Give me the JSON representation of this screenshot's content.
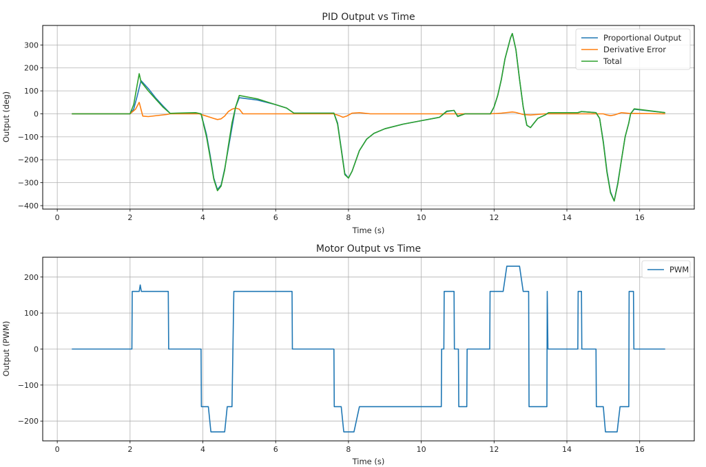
{
  "chart_data": [
    {
      "type": "line",
      "title": "PID Output vs Time",
      "xlabel": "Time (s)",
      "ylabel": "Output (deg)",
      "xlim": [
        -0.4,
        17.5
      ],
      "ylim": [
        -415,
        385
      ],
      "xticks": [
        0,
        2,
        4,
        6,
        8,
        10,
        12,
        14,
        16
      ],
      "yticks": [
        -400,
        -300,
        -200,
        -100,
        0,
        100,
        200,
        300
      ],
      "xtick_labels": [
        "0",
        "2",
        "4",
        "6",
        "8",
        "10",
        "12",
        "14",
        "16"
      ],
      "ytick_labels": [
        "−400",
        "−300",
        "−200",
        "−100",
        "0",
        "100",
        "200",
        "300"
      ],
      "grid": true,
      "legend_position": "upper right",
      "series": [
        {
          "name": "Proportional Output",
          "color": "#1f77b4",
          "x": [
            0.4,
            2.0,
            2.1,
            2.2,
            2.3,
            2.5,
            2.7,
            2.9,
            3.1,
            3.8,
            3.95,
            4.1,
            4.2,
            4.3,
            4.4,
            4.5,
            4.6,
            4.7,
            4.8,
            4.9,
            5.0,
            5.5,
            6.0,
            6.3,
            6.5,
            7.6,
            7.7,
            7.8,
            7.9,
            8.0,
            8.1,
            8.3,
            8.5,
            8.7,
            9.0,
            9.5,
            10.0,
            10.5,
            10.7,
            10.9,
            11.0,
            11.2,
            11.5,
            11.9,
            12.0,
            12.1,
            12.2,
            12.3,
            12.45,
            12.5,
            12.6,
            12.7,
            12.8,
            12.9,
            13.0,
            13.1,
            13.2,
            13.4,
            13.5,
            14.3,
            14.4,
            14.8,
            14.9,
            15.0,
            15.1,
            15.2,
            15.3,
            15.4,
            15.5,
            15.6,
            15.7,
            15.75,
            15.85,
            16.7
          ],
          "values": [
            0,
            0,
            20,
            80,
            145,
            110,
            70,
            35,
            2,
            2,
            0,
            -90,
            -180,
            -280,
            -330,
            -310,
            -240,
            -150,
            -60,
            30,
            70,
            60,
            40,
            25,
            3,
            3,
            -40,
            -150,
            -260,
            -280,
            -250,
            -160,
            -110,
            -85,
            -65,
            -45,
            -30,
            -15,
            10,
            15,
            -10,
            0,
            0,
            0,
            30,
            80,
            150,
            240,
            330,
            350,
            280,
            150,
            30,
            -50,
            -60,
            -40,
            -20,
            -5,
            5,
            5,
            10,
            5,
            -20,
            -120,
            -250,
            -340,
            -380,
            -300,
            -200,
            -100,
            -40,
            0,
            20,
            5
          ]
        },
        {
          "name": "Derivative Error",
          "color": "#ff7f0e",
          "x": [
            0.4,
            2.0,
            2.15,
            2.25,
            2.3,
            2.35,
            2.5,
            3.0,
            3.1,
            3.9,
            4.0,
            4.1,
            4.2,
            4.3,
            4.4,
            4.5,
            4.6,
            4.7,
            4.8,
            4.9,
            5.0,
            5.1,
            7.6,
            7.75,
            7.85,
            7.95,
            8.1,
            8.3,
            8.6,
            11.9,
            12.2,
            12.5,
            12.6,
            12.8,
            13.0,
            13.4,
            15.0,
            15.1,
            15.2,
            15.3,
            15.5,
            15.7,
            16.7
          ],
          "values": [
            0,
            0,
            20,
            50,
            20,
            -10,
            -12,
            -3,
            0,
            0,
            -5,
            -10,
            -15,
            -20,
            -25,
            -22,
            -10,
            10,
            20,
            25,
            20,
            0,
            0,
            -8,
            -15,
            -10,
            3,
            5,
            0,
            0,
            3,
            8,
            6,
            -3,
            -5,
            0,
            0,
            -5,
            -8,
            -5,
            5,
            2,
            0
          ]
        },
        {
          "name": "Total",
          "color": "#2ca02c",
          "x": [
            0.4,
            2.0,
            2.1,
            2.2,
            2.25,
            2.3,
            2.5,
            2.7,
            2.9,
            3.1,
            3.8,
            3.95,
            4.1,
            4.2,
            4.3,
            4.4,
            4.5,
            4.6,
            4.7,
            4.8,
            4.9,
            5.0,
            5.5,
            6.0,
            6.3,
            6.5,
            7.6,
            7.7,
            7.8,
            7.9,
            8.0,
            8.1,
            8.3,
            8.5,
            8.7,
            9.0,
            9.5,
            10.0,
            10.5,
            10.7,
            10.9,
            11.0,
            11.2,
            11.5,
            11.9,
            12.0,
            12.1,
            12.2,
            12.3,
            12.45,
            12.5,
            12.6,
            12.7,
            12.8,
            12.9,
            13.0,
            13.1,
            13.2,
            13.4,
            13.5,
            14.3,
            14.4,
            14.8,
            14.9,
            15.0,
            15.1,
            15.2,
            15.3,
            15.4,
            15.5,
            15.6,
            15.7,
            15.75,
            15.85,
            16.7
          ],
          "values": [
            0,
            0,
            40,
            130,
            175,
            140,
            100,
            65,
            30,
            2,
            5,
            0,
            -100,
            -190,
            -285,
            -335,
            -315,
            -245,
            -140,
            -40,
            30,
            80,
            65,
            40,
            25,
            3,
            3,
            -45,
            -155,
            -265,
            -280,
            -250,
            -160,
            -110,
            -85,
            -65,
            -45,
            -30,
            -15,
            12,
            15,
            -12,
            0,
            0,
            0,
            30,
            80,
            150,
            240,
            330,
            350,
            280,
            150,
            30,
            -50,
            -60,
            -40,
            -20,
            -5,
            5,
            5,
            10,
            5,
            -20,
            -125,
            -255,
            -345,
            -380,
            -305,
            -200,
            -100,
            -40,
            0,
            22,
            5
          ]
        }
      ]
    },
    {
      "type": "line",
      "title": "Motor Output vs Time",
      "xlabel": "Time (s)",
      "ylabel": "Output (PWM)",
      "xlim": [
        -0.4,
        17.5
      ],
      "ylim": [
        -255,
        255
      ],
      "xticks": [
        0,
        2,
        4,
        6,
        8,
        10,
        12,
        14,
        16
      ],
      "yticks": [
        -200,
        -100,
        0,
        100,
        200
      ],
      "xtick_labels": [
        "0",
        "2",
        "4",
        "6",
        "8",
        "10",
        "12",
        "14",
        "16"
      ],
      "ytick_labels": [
        "−200",
        "−100",
        "0",
        "100",
        "200"
      ],
      "grid": true,
      "legend_position": "upper right",
      "series": [
        {
          "name": "PWM",
          "color": "#1f77b4",
          "x": [
            0.4,
            2.05,
            2.06,
            2.25,
            2.28,
            2.31,
            3.05,
            3.06,
            3.95,
            3.96,
            4.15,
            4.22,
            4.6,
            4.67,
            4.8,
            4.85,
            6.45,
            6.46,
            7.6,
            7.61,
            7.8,
            7.87,
            8.15,
            8.3,
            10.55,
            10.56,
            10.62,
            10.63,
            10.9,
            10.91,
            11.02,
            11.03,
            11.25,
            11.26,
            11.88,
            11.89,
            12.25,
            12.35,
            12.7,
            12.8,
            12.95,
            12.96,
            13.45,
            13.46,
            13.48,
            13.5,
            14.3,
            14.31,
            14.4,
            14.41,
            14.8,
            14.81,
            15.0,
            15.06,
            15.38,
            15.46,
            15.7,
            15.71,
            15.83,
            15.84,
            16.7
          ],
          "values": [
            0,
            0,
            160,
            160,
            178,
            160,
            160,
            0,
            0,
            -160,
            -160,
            -230,
            -230,
            -160,
            -160,
            160,
            160,
            0,
            0,
            -160,
            -160,
            -230,
            -230,
            -160,
            -160,
            0,
            0,
            160,
            160,
            0,
            0,
            -160,
            -160,
            0,
            0,
            160,
            160,
            230,
            230,
            160,
            160,
            -160,
            -160,
            160,
            0,
            0,
            0,
            160,
            160,
            0,
            0,
            -160,
            -160,
            -230,
            -230,
            -160,
            -160,
            160,
            160,
            0,
            0
          ]
        }
      ]
    }
  ]
}
